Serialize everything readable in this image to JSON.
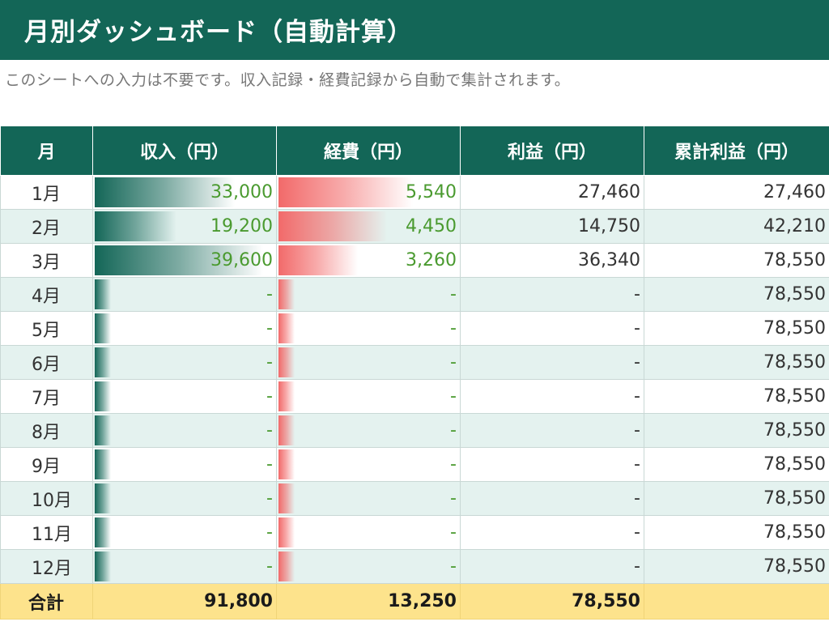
{
  "title": "月別ダッシュボード（自動計算）",
  "subtitle": "このシートへの入力は不要です。収入記録・経費記録から自動で集計されます。",
  "colors": {
    "header_bg": "#136657",
    "income_bar": "#136657",
    "expense_bar": "#f26a6a",
    "value_text": "#4a9a2f",
    "total_row_bg": "#fde38c",
    "stripe": "#e4f2ef"
  },
  "columns": [
    "月",
    "収入（円）",
    "経費（円）",
    "利益（円）",
    "累計利益（円）"
  ],
  "rows": [
    {
      "month": "1月",
      "income": "33,000",
      "expense": "5,540",
      "profit": "27,460",
      "cumulative": "27,460",
      "income_value": 33000,
      "expense_value": 5540
    },
    {
      "month": "2月",
      "income": "19,200",
      "expense": "4,450",
      "profit": "14,750",
      "cumulative": "42,210",
      "income_value": 19200,
      "expense_value": 4450
    },
    {
      "month": "3月",
      "income": "39,600",
      "expense": "3,260",
      "profit": "36,340",
      "cumulative": "78,550",
      "income_value": 39600,
      "expense_value": 3260
    },
    {
      "month": "4月",
      "income": "-",
      "expense": "-",
      "profit": "-",
      "cumulative": "78,550",
      "income_value": 0,
      "expense_value": 0
    },
    {
      "month": "5月",
      "income": "-",
      "expense": "-",
      "profit": "-",
      "cumulative": "78,550",
      "income_value": 0,
      "expense_value": 0
    },
    {
      "month": "6月",
      "income": "-",
      "expense": "-",
      "profit": "-",
      "cumulative": "78,550",
      "income_value": 0,
      "expense_value": 0
    },
    {
      "month": "7月",
      "income": "-",
      "expense": "-",
      "profit": "-",
      "cumulative": "78,550",
      "income_value": 0,
      "expense_value": 0
    },
    {
      "month": "8月",
      "income": "-",
      "expense": "-",
      "profit": "-",
      "cumulative": "78,550",
      "income_value": 0,
      "expense_value": 0
    },
    {
      "month": "9月",
      "income": "-",
      "expense": "-",
      "profit": "-",
      "cumulative": "78,550",
      "income_value": 0,
      "expense_value": 0
    },
    {
      "month": "10月",
      "income": "-",
      "expense": "-",
      "profit": "-",
      "cumulative": "78,550",
      "income_value": 0,
      "expense_value": 0
    },
    {
      "month": "11月",
      "income": "-",
      "expense": "-",
      "profit": "-",
      "cumulative": "78,550",
      "income_value": 0,
      "expense_value": 0
    },
    {
      "month": "12月",
      "income": "-",
      "expense": "-",
      "profit": "-",
      "cumulative": "78,550",
      "income_value": 0,
      "expense_value": 0
    }
  ],
  "total": {
    "label": "合計",
    "income": "91,800",
    "expense": "13,250",
    "profit": "78,550",
    "cumulative": ""
  }
}
